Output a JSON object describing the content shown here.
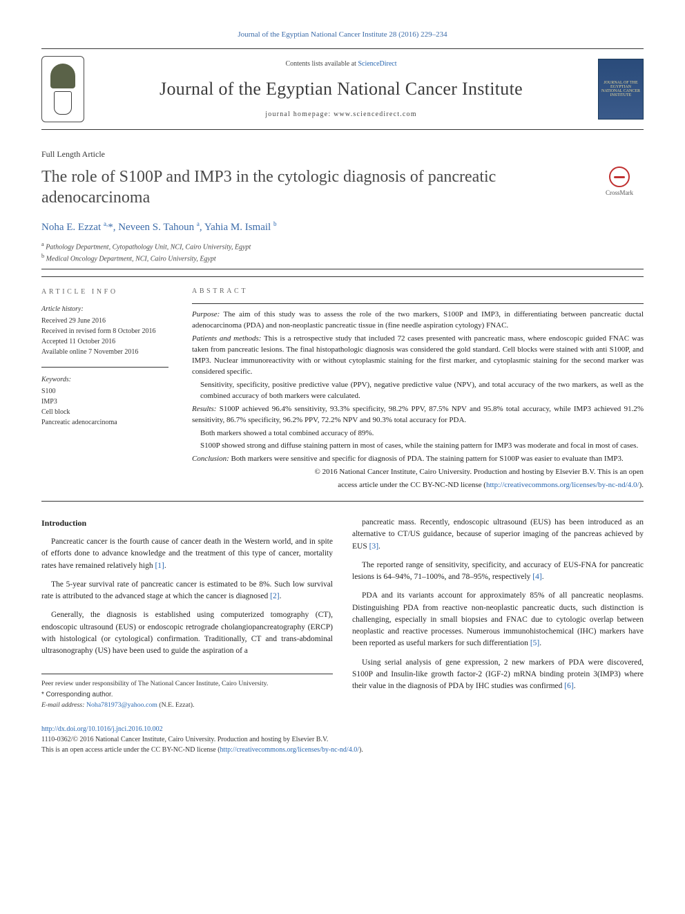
{
  "colors": {
    "link": "#2866b0",
    "journal_ref": "#3a6aa8",
    "body_text": "#222222",
    "rule": "#333333",
    "crossmark_red": "#c03030",
    "cover_bg": "#2a4b7a",
    "cover_text": "#e8d89a"
  },
  "journal_reference": "Journal of the Egyptian National Cancer Institute 28 (2016) 229–234",
  "masthead": {
    "contents_prefix": "Contents lists available at ",
    "contents_link": "ScienceDirect",
    "journal_title": "Journal of the Egyptian National Cancer Institute",
    "homepage_line": "journal homepage: www.sciencedirect.com",
    "cover_text": "JOURNAL OF THE EGYPTIAN NATIONAL CANCER INSTITUTE"
  },
  "article": {
    "type": "Full Length Article",
    "title": "The role of S100P and IMP3 in the cytologic diagnosis of pancreatic adenocarcinoma",
    "crossmark_label": "CrossMark",
    "authors_html": "Noha E. Ezzat <sup>a,</sup>*, Neveen S. Tahoun <sup>a</sup>, Yahia M. Ismail <sup>b</sup>",
    "affiliations": [
      {
        "sup": "a",
        "text": "Pathology Department, Cytopathology Unit, NCI, Cairo University, Egypt"
      },
      {
        "sup": "b",
        "text": "Medical Oncology Department, NCI, Cairo University, Egypt"
      }
    ]
  },
  "info": {
    "heading": "ARTICLE INFO",
    "history_head": "Article history:",
    "history": [
      "Received 29 June 2016",
      "Received in revised form 8 October 2016",
      "Accepted 11 October 2016",
      "Available online 7 November 2016"
    ],
    "keywords_head": "Keywords:",
    "keywords": [
      "S100",
      "IMP3",
      "Cell block",
      "Pancreatic adenocarcinoma"
    ]
  },
  "abstract": {
    "heading": "ABSTRACT",
    "purpose_label": "Purpose:",
    "purpose": " The aim of this study was to assess the role of the two markers, S100P and IMP3, in differentiating between pancreatic ductal adenocarcinoma (PDA) and non-neoplastic pancreatic tissue in (fine needle aspiration cytology) FNAC.",
    "methods_label": "Patients and methods:",
    "methods": " This is a retrospective study that included 72 cases presented with pancreatic mass, where endoscopic guided FNAC was taken from pancreatic lesions. The final histopathologic diagnosis was considered the gold standard. Cell blocks were stained with anti S100P, and IMP3. Nuclear immunoreactivity with or without cytoplasmic staining for the first marker, and cytoplasmic staining for the second marker was considered specific.",
    "methods_extra": "Sensitivity, specificity, positive predictive value (PPV), negative predictive value (NPV), and total accuracy of the two markers, as well as the combined accuracy of both markers were calculated.",
    "results_label": "Results:",
    "results": " S100P achieved 96.4% sensitivity, 93.3% specificity, 98.2% PPV, 87.5% NPV and 95.8% total accuracy, while IMP3 achieved 91.2% sensitivity, 86.7% specificity, 96.2% PPV, 72.2% NPV and 90.3% total accuracy for PDA.",
    "results_extra1": "Both markers showed a total combined accuracy of 89%.",
    "results_extra2": "S100P showed strong and diffuse staining pattern in most of cases, while the staining pattern for IMP3 was moderate and focal in most of cases.",
    "conclusion_label": "Conclusion:",
    "conclusion": " Both markers were sensitive and specific for diagnosis of PDA. The staining pattern for S100P was easier to evaluate than IMP3.",
    "copyright": "© 2016 National Cancer Institute, Cairo University. Production and hosting by Elsevier B.V. This is an open",
    "license_prefix": "access article under the CC BY-NC-ND license (",
    "license_link": "http://creativecommons.org/licenses/by-nc-nd/4.0/",
    "license_suffix": ")."
  },
  "body": {
    "intro_head": "Introduction",
    "left": [
      "Pancreatic cancer is the fourth cause of cancer death in the Western world, and in spite of efforts done to advance knowledge and the treatment of this type of cancer, mortality rates have remained relatively high [1].",
      "The 5-year survival rate of pancreatic cancer is estimated to be 8%. Such low survival rate is attributed to the advanced stage at which the cancer is diagnosed [2].",
      "Generally, the diagnosis is established using computerized tomography (CT), endoscopic ultrasound (EUS) or endoscopic retrograde cholangiopancreatography (ERCP) with histological (or cytological) confirmation. Traditionally, CT and trans-abdominal ultrasonography (US) have been used to guide the aspiration of a"
    ],
    "right": [
      "pancreatic mass. Recently, endoscopic ultrasound (EUS) has been introduced as an alternative to CT/US guidance, because of superior imaging of the pancreas achieved by EUS [3].",
      "The reported range of sensitivity, specificity, and accuracy of EUS-FNA for pancreatic lesions is 64–94%, 71–100%, and 78–95%, respectively [4].",
      "PDA and its variants account for approximately 85% of all pancreatic neoplasms. Distinguishing PDA from reactive non-neoplastic pancreatic ducts, such distinction is challenging, especially in small biopsies and FNAC due to cytologic overlap between neoplastic and reactive processes. Numerous immunohistochemical (IHC) markers have been reported as useful markers for such differentiation [5].",
      "Using serial analysis of gene expression, 2 new markers of PDA were discovered, S100P and Insulin-like growth factor-2 (IGF-2) mRNA binding protein 3(IMP3) where their value in the diagnosis of PDA by IHC studies was confirmed [6]."
    ]
  },
  "footnotes": {
    "peer": "Peer review under responsibility of The National Cancer Institute, Cairo University.",
    "corr_label": "* Corresponding author.",
    "email_label": "E-mail address:",
    "email": "Noha781973@yahoo.com",
    "email_name": " (N.E. Ezzat)."
  },
  "doi": {
    "link": "http://dx.doi.org/10.1016/j.jnci.2016.10.002",
    "issn_line": "1110-0362/© 2016 National Cancer Institute, Cairo University. Production and hosting by Elsevier B.V.",
    "license_prefix": "This is an open access article under the CC BY-NC-ND license (",
    "license_link": "http://creativecommons.org/licenses/by-nc-nd/4.0/",
    "license_suffix": ")."
  }
}
